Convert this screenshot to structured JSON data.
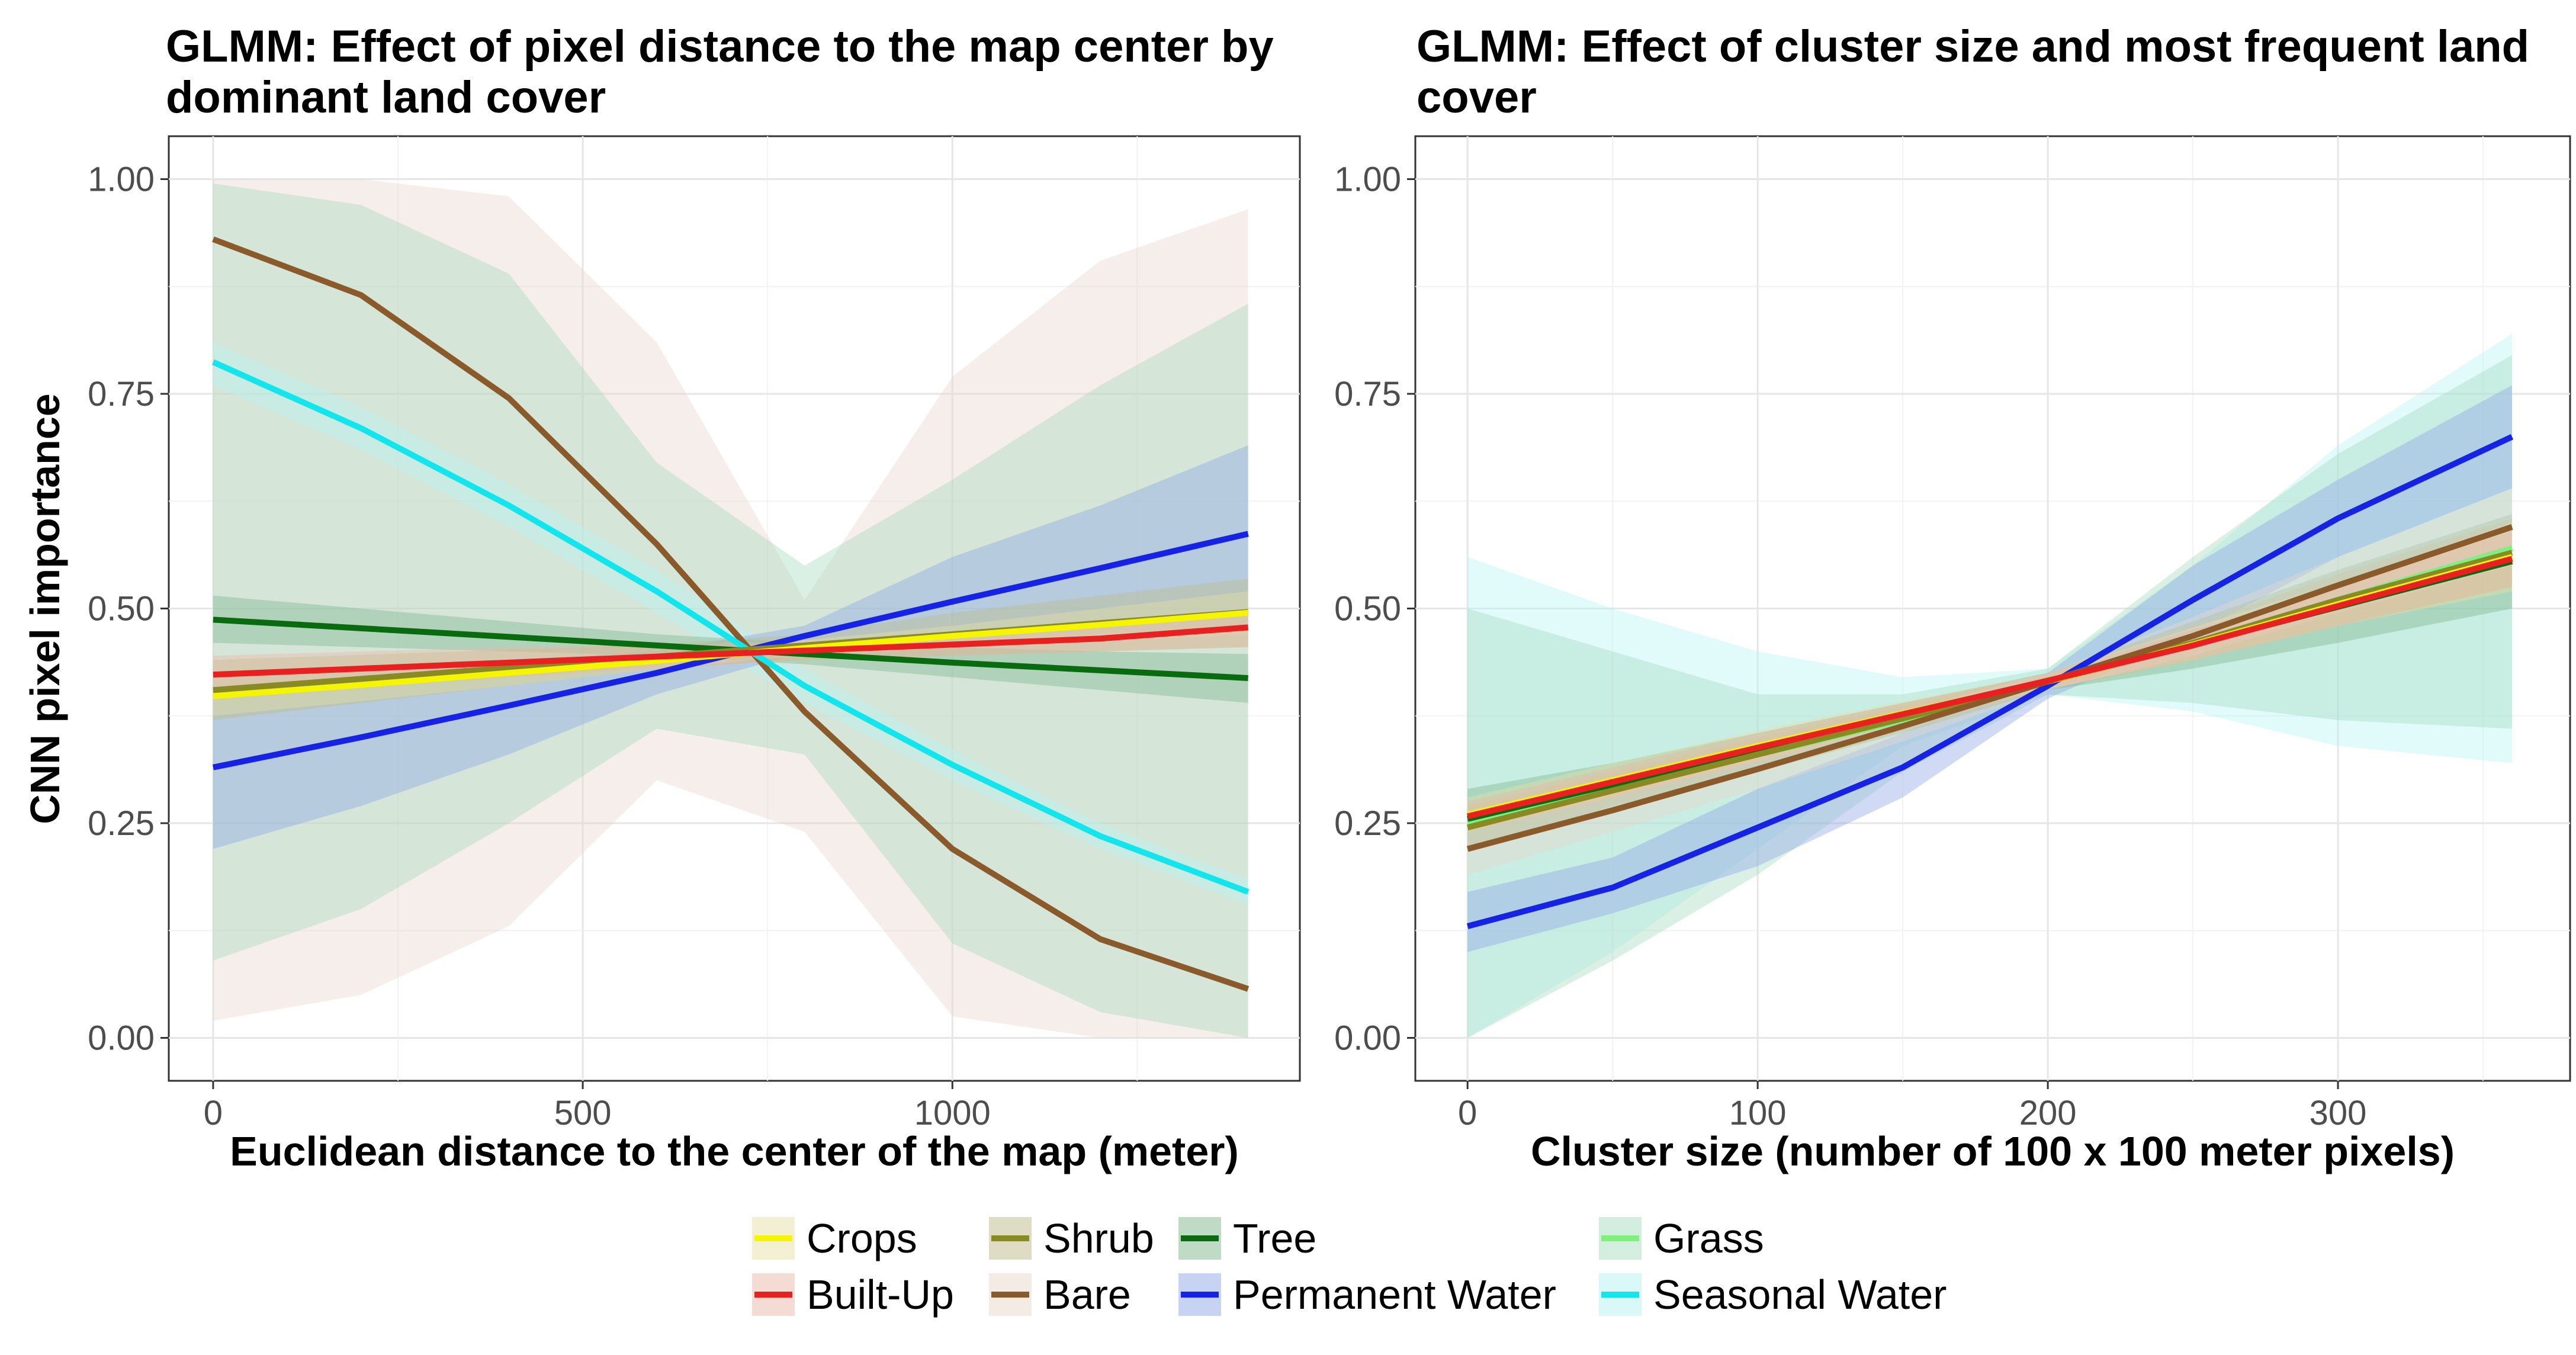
{
  "colors": {
    "Crops": "#f5f500",
    "Built-Up": "#e8201f",
    "Shrub": "#8a8a22",
    "Bare": "#8a5a2b",
    "Tree": "#0a6a10",
    "Permanent Water": "#1622e6",
    "Grass": "#7ef07e",
    "Seasonal Water": "#12e6ec"
  },
  "ribbon_colors": {
    "Crops": "#e8e0a8",
    "Built-Up": "#e9b8a8",
    "Shrub": "#bdbc88",
    "Bare": "#ead7cc",
    "Tree": "#80b88e",
    "Permanent Water": "#8ea8e6",
    "Grass": "#a8dcc0",
    "Seasonal Water": "#b8f2f2"
  },
  "legend": {
    "rows": [
      [
        "Crops",
        "Shrub",
        "Tree",
        "Grass"
      ],
      [
        "Built-Up",
        "Bare",
        "Permanent Water",
        "Seasonal Water"
      ]
    ]
  },
  "chart_data": [
    {
      "type": "line",
      "title": "GLMM: Effect of pixel distance to the map center by dominant land cover",
      "title_lines": [
        "GLMM: Effect of pixel distance to the map center by",
        "dominant land cover"
      ],
      "xlabel": "Euclidean distance to the center of the map (meter)",
      "ylabel": "CNN pixel importance",
      "xlim": [
        -60,
        1470
      ],
      "ylim": [
        -0.05,
        1.05
      ],
      "xticks": [
        0,
        500,
        1000
      ],
      "yticks": [
        0.0,
        0.25,
        0.5,
        0.75,
        1.0
      ],
      "ytick_labels": [
        "0.00",
        "0.25",
        "0.50",
        "0.75",
        "1.00"
      ],
      "grid": true,
      "x": [
        0,
        200,
        400,
        600,
        800,
        1000,
        1200,
        1400
      ],
      "series": [
        {
          "name": "Bare",
          "values": [
            0.93,
            0.865,
            0.745,
            0.575,
            0.38,
            0.22,
            0.115,
            0.057
          ],
          "lower": [
            0.02,
            0.05,
            0.13,
            0.3,
            0.24,
            0.025,
            0.0,
            0.0
          ],
          "upper": [
            1.0,
            1.0,
            0.98,
            0.81,
            0.51,
            0.77,
            0.905,
            0.965
          ]
        },
        {
          "name": "Grass",
          "values": [
            0.487,
            0.477,
            0.467,
            0.457,
            0.447,
            0.437,
            0.428,
            0.419
          ],
          "lower": [
            0.09,
            0.15,
            0.25,
            0.36,
            0.33,
            0.11,
            0.03,
            0.0
          ],
          "upper": [
            0.995,
            0.97,
            0.89,
            0.67,
            0.55,
            0.65,
            0.76,
            0.855
          ]
        },
        {
          "name": "Seasonal Water",
          "values": [
            0.787,
            0.71,
            0.62,
            0.52,
            0.41,
            0.318,
            0.235,
            0.17
          ],
          "lower": [
            0.76,
            0.685,
            0.595,
            0.495,
            0.39,
            0.3,
            0.22,
            0.155
          ],
          "upper": [
            0.81,
            0.735,
            0.645,
            0.545,
            0.43,
            0.336,
            0.25,
            0.185
          ]
        },
        {
          "name": "Permanent Water",
          "values": [
            0.315,
            0.35,
            0.387,
            0.425,
            0.468,
            0.508,
            0.547,
            0.587
          ],
          "lower": [
            0.22,
            0.27,
            0.33,
            0.4,
            0.45,
            0.46,
            0.47,
            0.48
          ],
          "upper": [
            0.42,
            0.43,
            0.44,
            0.45,
            0.48,
            0.56,
            0.62,
            0.69
          ]
        },
        {
          "name": "Tree",
          "values": [
            0.487,
            0.477,
            0.467,
            0.457,
            0.447,
            0.437,
            0.428,
            0.419
          ],
          "lower": [
            0.46,
            0.455,
            0.45,
            0.445,
            0.435,
            0.42,
            0.405,
            0.39
          ],
          "upper": [
            0.515,
            0.5,
            0.485,
            0.47,
            0.46,
            0.455,
            0.45,
            0.447
          ]
        },
        {
          "name": "Shrub",
          "values": [
            0.405,
            0.418,
            0.431,
            0.444,
            0.457,
            0.47,
            0.483,
            0.496
          ],
          "lower": [
            0.37,
            0.39,
            0.41,
            0.43,
            0.44,
            0.445,
            0.45,
            0.455
          ],
          "upper": [
            0.44,
            0.446,
            0.452,
            0.458,
            0.47,
            0.495,
            0.515,
            0.535
          ]
        },
        {
          "name": "Crops",
          "values": [
            0.398,
            0.411,
            0.425,
            0.439,
            0.454,
            0.468,
            0.481,
            0.495
          ],
          "lower": [
            0.375,
            0.392,
            0.41,
            0.43,
            0.445,
            0.455,
            0.462,
            0.47
          ],
          "upper": [
            0.42,
            0.43,
            0.44,
            0.448,
            0.463,
            0.48,
            0.5,
            0.52
          ]
        },
        {
          "name": "Built-Up",
          "values": [
            0.423,
            0.43,
            0.437,
            0.444,
            0.451,
            0.458,
            0.465,
            0.478
          ],
          "lower": [
            0.4,
            0.41,
            0.42,
            0.43,
            0.44,
            0.445,
            0.45,
            0.455
          ],
          "upper": [
            0.445,
            0.45,
            0.455,
            0.458,
            0.462,
            0.47,
            0.48,
            0.5
          ]
        }
      ]
    },
    {
      "type": "line",
      "title": "GLMM: Effect of cluster size and most frequent land cover",
      "title_lines": [
        "GLMM: Effect of cluster size and most frequent land",
        "cover"
      ],
      "xlabel": "Cluster size (number of 100 x 100 meter pixels)",
      "ylabel": "",
      "xlim": [
        -18,
        380
      ],
      "ylim": [
        -0.05,
        1.05
      ],
      "xticks": [
        0,
        100,
        200,
        300
      ],
      "yticks": [
        0.0,
        0.25,
        0.5,
        0.75,
        1.0
      ],
      "ytick_labels": [
        "0.00",
        "0.25",
        "0.50",
        "0.75",
        "1.00"
      ],
      "grid": true,
      "x": [
        0,
        50,
        100,
        150,
        200,
        250,
        300,
        360
      ],
      "series": [
        {
          "name": "Seasonal Water",
          "values": [
            0.25,
            0.29,
            0.33,
            0.37,
            0.415,
            0.46,
            0.51,
            0.57
          ],
          "lower": [
            0.0,
            0.1,
            0.22,
            0.34,
            0.4,
            0.38,
            0.34,
            0.32
          ],
          "upper": [
            0.56,
            0.5,
            0.45,
            0.42,
            0.43,
            0.55,
            0.69,
            0.82
          ]
        },
        {
          "name": "Grass",
          "values": [
            0.25,
            0.29,
            0.33,
            0.37,
            0.415,
            0.46,
            0.51,
            0.57
          ],
          "lower": [
            0.0,
            0.09,
            0.19,
            0.31,
            0.4,
            0.39,
            0.37,
            0.36
          ],
          "upper": [
            0.5,
            0.45,
            0.4,
            0.4,
            0.43,
            0.56,
            0.68,
            0.795
          ]
        },
        {
          "name": "Permanent Water",
          "values": [
            0.13,
            0.175,
            0.245,
            0.315,
            0.41,
            0.51,
            0.605,
            0.7
          ],
          "lower": [
            0.1,
            0.145,
            0.2,
            0.28,
            0.395,
            0.47,
            0.56,
            0.64
          ],
          "upper": [
            0.17,
            0.21,
            0.29,
            0.355,
            0.425,
            0.55,
            0.65,
            0.76
          ]
        },
        {
          "name": "Tree",
          "values": [
            0.255,
            0.295,
            0.335,
            0.375,
            0.415,
            0.458,
            0.502,
            0.555
          ],
          "lower": [
            0.22,
            0.27,
            0.31,
            0.355,
            0.405,
            0.43,
            0.46,
            0.5
          ],
          "upper": [
            0.29,
            0.32,
            0.355,
            0.39,
            0.425,
            0.485,
            0.545,
            0.61
          ]
        },
        {
          "name": "Shrub",
          "values": [
            0.245,
            0.288,
            0.33,
            0.372,
            0.415,
            0.46,
            0.51,
            0.565
          ],
          "lower": [
            0.22,
            0.265,
            0.31,
            0.357,
            0.405,
            0.44,
            0.48,
            0.525
          ],
          "upper": [
            0.27,
            0.31,
            0.35,
            0.387,
            0.425,
            0.48,
            0.54,
            0.605
          ]
        },
        {
          "name": "Crops",
          "values": [
            0.26,
            0.3,
            0.34,
            0.378,
            0.415,
            0.458,
            0.505,
            0.56
          ],
          "lower": [
            0.24,
            0.28,
            0.322,
            0.365,
            0.407,
            0.44,
            0.48,
            0.52
          ],
          "upper": [
            0.28,
            0.32,
            0.358,
            0.392,
            0.424,
            0.478,
            0.53,
            0.6
          ]
        },
        {
          "name": "Bare",
          "values": [
            0.22,
            0.265,
            0.313,
            0.363,
            0.415,
            0.468,
            0.527,
            0.595
          ],
          "lower": [
            0.19,
            0.24,
            0.29,
            0.345,
            0.405,
            0.445,
            0.495,
            0.55
          ],
          "upper": [
            0.25,
            0.29,
            0.336,
            0.38,
            0.425,
            0.49,
            0.56,
            0.64
          ]
        },
        {
          "name": "Built-Up",
          "values": [
            0.258,
            0.298,
            0.338,
            0.377,
            0.416,
            0.457,
            0.503,
            0.558
          ],
          "lower": [
            0.24,
            0.28,
            0.322,
            0.365,
            0.408,
            0.44,
            0.48,
            0.525
          ],
          "upper": [
            0.275,
            0.315,
            0.355,
            0.39,
            0.424,
            0.475,
            0.527,
            0.59
          ]
        }
      ]
    }
  ]
}
